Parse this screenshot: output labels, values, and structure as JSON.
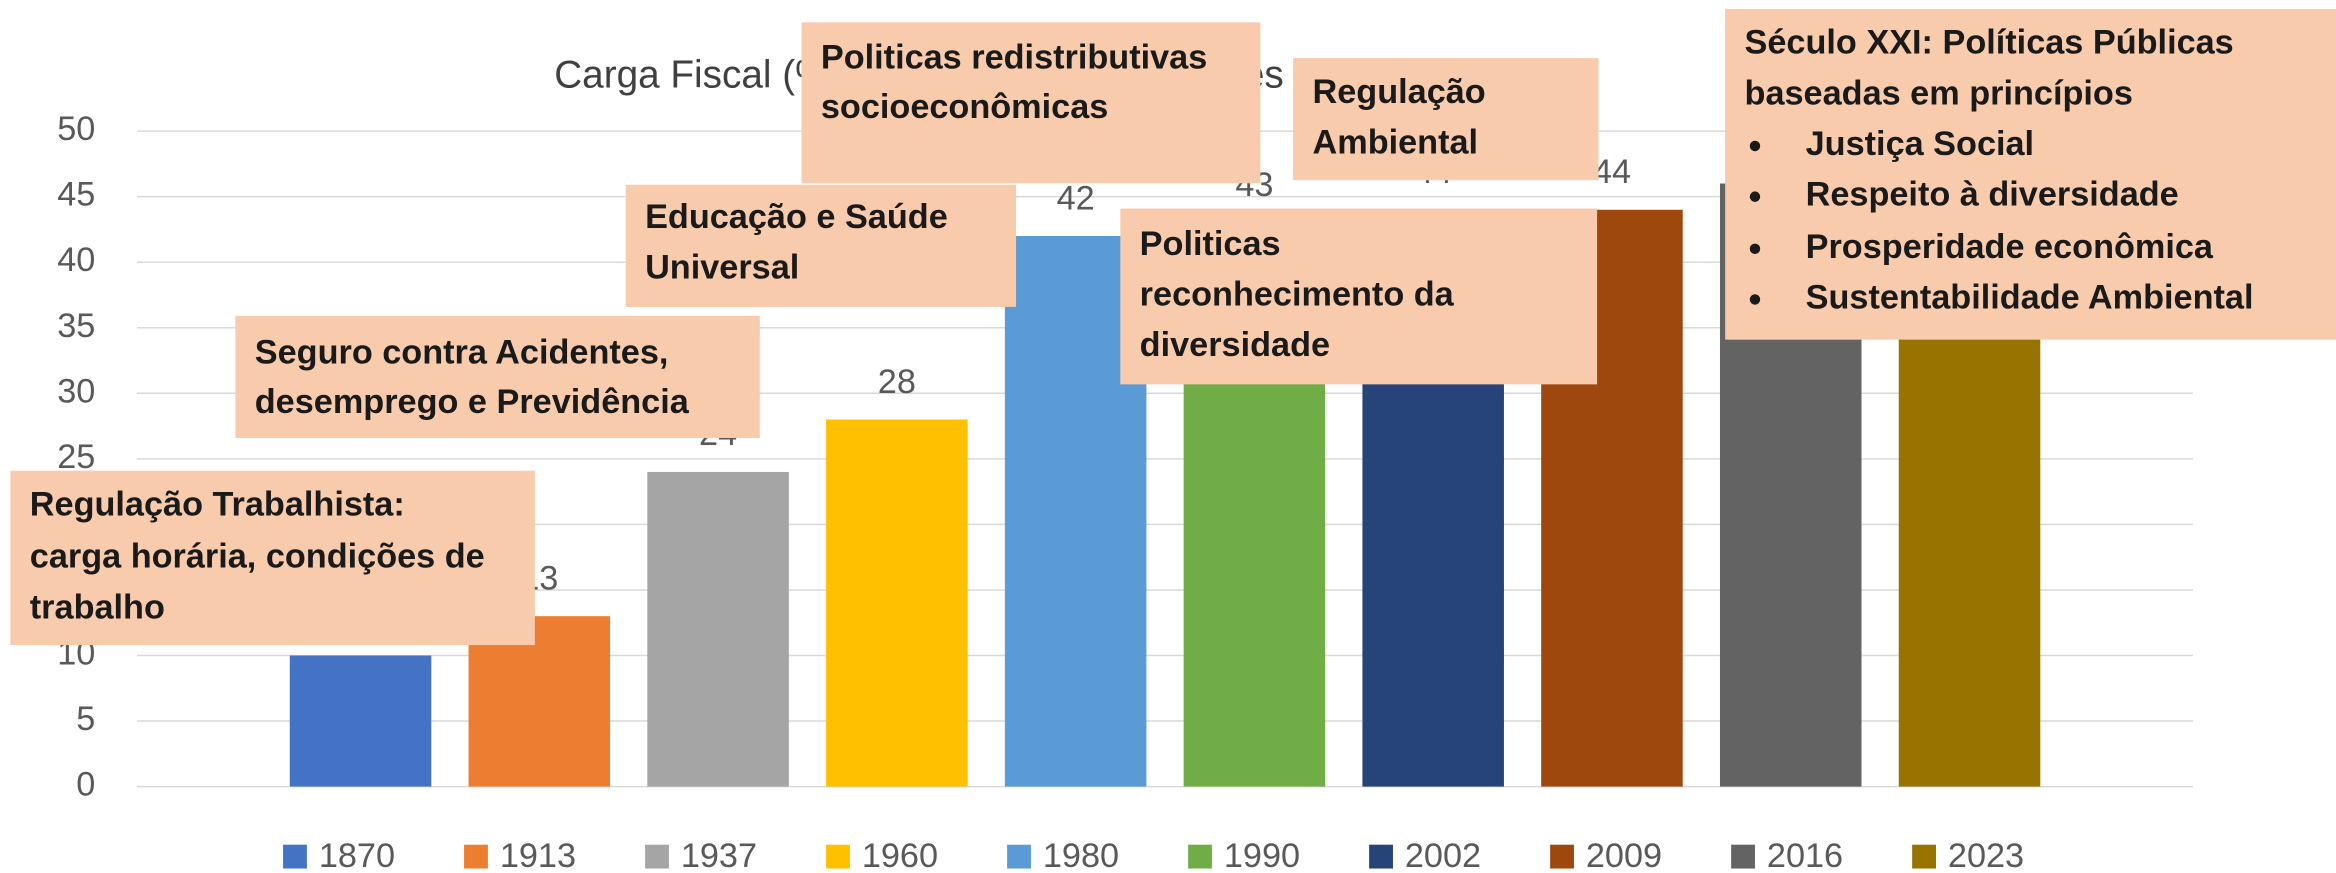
{
  "chart_data": {
    "type": "bar",
    "title": "Carga Fiscal (% do PIB) média dos países da OCDE",
    "categories": [
      "1870",
      "1913",
      "1937",
      "1960",
      "1980",
      "1990",
      "2002",
      "2009",
      "2016",
      "2023"
    ],
    "values": [
      10,
      13,
      24,
      28,
      42,
      43,
      44,
      44,
      46,
      46
    ],
    "colors": [
      "#4472c4",
      "#ed7d31",
      "#a5a5a5",
      "#ffc000",
      "#5b9bd5",
      "#70ad47",
      "#264478",
      "#9e480e",
      "#636363",
      "#997300"
    ],
    "ylim": [
      0,
      50
    ],
    "yticks": [
      0,
      5,
      10,
      15,
      20,
      25,
      30,
      35,
      40,
      45,
      50
    ],
    "grid": true,
    "legend": "bottom",
    "annotations": [
      {
        "lines": [
          "Regulação Trabalhista:",
          "carga horária, condições de",
          "trabalho"
        ]
      },
      {
        "lines": [
          "Seguro contra Acidentes,",
          "desemprego e Previdência"
        ]
      },
      {
        "lines": [
          "Educação e Saúde",
          "Universal"
        ]
      },
      {
        "lines": [
          "Politicas redistributivas",
          "socioeconômicas"
        ]
      },
      {
        "lines": [
          "Regulação",
          "Ambiental"
        ]
      },
      {
        "lines": [
          "Politicas",
          "reconhecimento da",
          "diversidade"
        ]
      },
      {
        "lines": [
          "Século XXI: Políticas Públicas",
          "baseadas em princípios"
        ],
        "items": [
          "Justiça Social",
          "Respeito à diversidade",
          "Prosperidade econômica",
          "Sustentabilidade Ambiental"
        ]
      }
    ]
  }
}
